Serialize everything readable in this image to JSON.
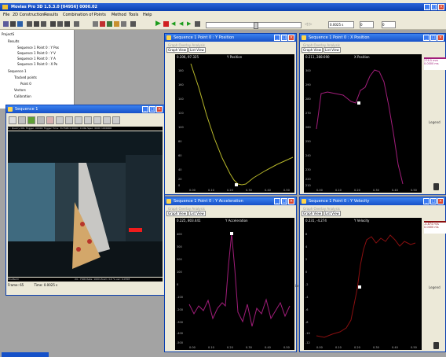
{
  "app": {
    "title": "Movias Pro 3D 1.5.3.0 [04956] 0000.02",
    "menus": [
      "File",
      "2D Construction",
      "Results",
      "Combination of Points",
      "Method",
      "Tools",
      "Help"
    ],
    "time_value": "0.0025 s",
    "frame_value": "0",
    "frame_value_2": "0"
  },
  "tree": {
    "project": "ProjectS",
    "results": "Results",
    "result_items": [
      "Sequence 1 Point 0 : Y Pos",
      "Sequence 1 Point 0 : Y V",
      "Sequence 1 Point 0 : Y A",
      "Sequence 1 Point 0 : X Po"
    ],
    "sequence": "Sequence 1",
    "tracked_points": "Tracked points",
    "point": "Point 0",
    "vectors": "Vectors",
    "calibration": "Calibration"
  },
  "sequence_window": {
    "title": "Sequence 1",
    "info": "1 : Quarry  001  Trigger: 00000  Trigger Time: 317696   0.0000 / 0.00s   Spec: 0000  1000000",
    "status_left": "Shutterm",
    "status_right": "24 - 7000  Rate: 1000  Zoom: 0.0 %  ver: 0.0708",
    "frame_label": "Frame: 65",
    "time_label": "Time: 0.0025 s"
  },
  "graph_windows": [
    {
      "title": "Sequence 1 Point 0 : Y Position",
      "menu": "Graph   Overlay   Analysis",
      "tabs": [
        "Graph View",
        "List View"
      ],
      "coord": "0.206, 97.325",
      "plot_title": "Y Position",
      "line_color": "#b7b72a",
      "y_ticks": [
        "180",
        "160",
        "140",
        "120",
        "100",
        "80",
        "60",
        "40",
        "20",
        "0"
      ],
      "x_ticks": [
        "0.00",
        "0.10",
        "0.20",
        "0.30",
        "0.40",
        "0.50"
      ]
    },
    {
      "title": "Sequence 1 Point 0 : X Position",
      "menu": "Graph   Overlay   Analysis",
      "tabs": [
        "Graph View",
        "List View"
      ],
      "coord": "0.211, 288.690",
      "plot_title": "X Position",
      "line_color": "#a11d7a",
      "legend_title": "Legend",
      "legend_lines": [
        "276.5 mm",
        "0.0000 ms"
      ],
      "y_ticks": [
        "300",
        "290",
        "280",
        "270",
        "260",
        "250",
        "240",
        "230",
        "220",
        "210"
      ],
      "x_ticks": [
        "0.00",
        "0.10",
        "0.20",
        "0.30",
        "0.40",
        "0.50"
      ]
    },
    {
      "title": "Sequence 1 Point 0 : Y Acceleration",
      "menu": "Graph   Overlay   Analysis",
      "tabs": [
        "Graph View",
        "List View"
      ],
      "coord": "0.225, 803.441",
      "plot_title": "Y Acceleration",
      "line_color": "#a11d7a",
      "y_ticks": [
        "400",
        "300",
        "200",
        "100",
        "0",
        "-100",
        "-200",
        "-300",
        "-400",
        "-500"
      ],
      "x_ticks": [
        "0.00",
        "0.10",
        "0.20",
        "0.30",
        "0.40",
        "0.50"
      ]
    },
    {
      "title": "Sequence 1 Point 0 : Y Velocity",
      "menu": "Graph   Overlay   Analysis",
      "tabs": [
        "Graph View",
        "List View"
      ],
      "coord": "0.231, -4.274",
      "plot_title": "Y Velocity",
      "line_color": "#8a0f10",
      "legend_title": "Legend",
      "legend_lines": [
        "-4.874 m/s",
        "0.0000 ms"
      ],
      "y_ticks": [
        "6",
        "4",
        "2",
        "0",
        "-2",
        "-4",
        "-6",
        "-8",
        "-10",
        "-12"
      ],
      "x_ticks": [
        "0.00",
        "0.10",
        "0.20",
        "0.30",
        "0.40",
        "0.50"
      ]
    }
  ]
}
